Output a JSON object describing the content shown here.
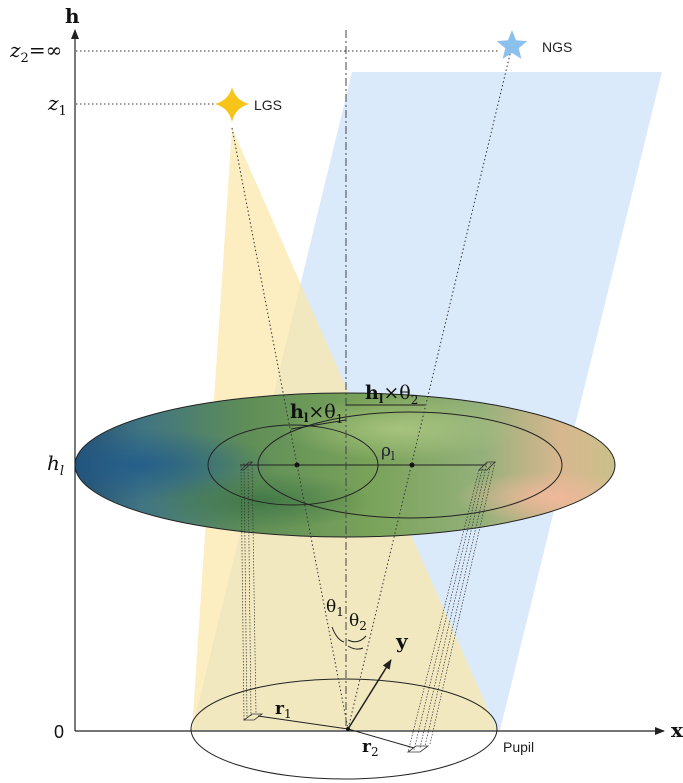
{
  "axes": {
    "h_label": "h",
    "x_label": "x",
    "y_label": "y",
    "origin_label": "0"
  },
  "levels": {
    "z2": {
      "var": "z",
      "sub": "2",
      "suffix": "=∞"
    },
    "z1": {
      "var": "z",
      "sub": "1"
    },
    "hl": {
      "var": "h",
      "sub": "l"
    }
  },
  "stars": {
    "ngs": {
      "label": "NGS",
      "color": "#8cc1ee"
    },
    "lgs": {
      "label": "LGS",
      "color": "#f7c51a"
    }
  },
  "layer_labels": {
    "h_theta1": {
      "h": "h",
      "l": "l",
      "op": "×θ",
      "sub": "1"
    },
    "h_theta2": {
      "h": "h",
      "l": "l",
      "op": "×θ",
      "sub": "2"
    },
    "rho": {
      "sym": "ρ",
      "sub": "l"
    }
  },
  "angles": {
    "theta1": {
      "sym": "θ",
      "sub": "1"
    },
    "theta2": {
      "sym": "θ",
      "sub": "2"
    }
  },
  "pupil": {
    "label": "Pupil",
    "r1": {
      "sym": "r",
      "sub": "1"
    },
    "r2": {
      "sym": "r",
      "sub": "2"
    }
  },
  "colors": {
    "lgs_cone": "#fbe7a6",
    "ngs_beam": "#cfe3f8",
    "layer_dark": "#2f5e6a",
    "layer_green": "#6f9a4e",
    "layer_peach": "#e3b48e"
  }
}
